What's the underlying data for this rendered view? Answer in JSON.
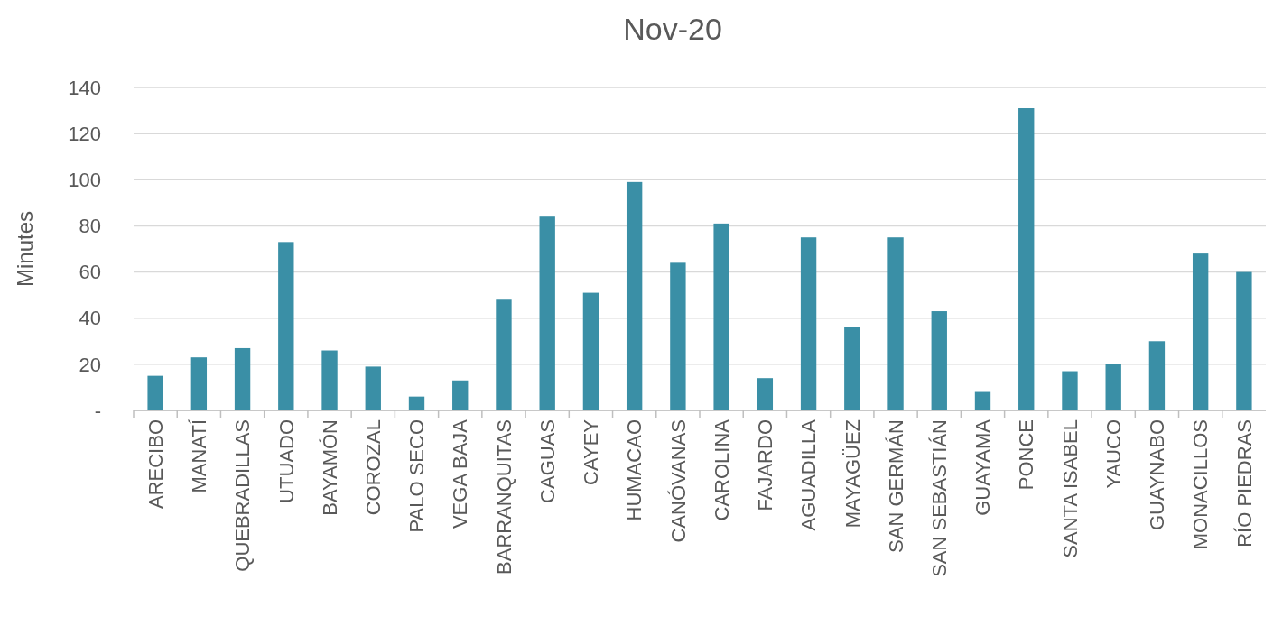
{
  "chart_data": {
    "type": "bar",
    "title": "Nov-20",
    "ylabel": "Minutes",
    "categories": [
      "ARECIBO",
      "MANATÍ",
      "QUEBRADILLAS",
      "UTUADO",
      "BAYAMÓN",
      "COROZAL",
      "PALO SECO",
      "VEGA BAJA",
      "BARRANQUITAS",
      "CAGUAS",
      "CAYEY",
      "HUMACAO",
      "CANÓVANAS",
      "CAROLINA",
      "FAJARDO",
      "AGUADILLA",
      "MAYAGÜEZ",
      "SAN GERMÁN",
      "SAN SEBASTIÁN",
      "GUAYAMA",
      "PONCE",
      "SANTA ISABEL",
      "YAUCO",
      "GUAYNABO",
      "MONACILLOS",
      "RÍO PIEDRAS"
    ],
    "values": [
      15,
      23,
      27,
      73,
      26,
      19,
      6,
      13,
      48,
      84,
      51,
      99,
      64,
      81,
      14,
      75,
      36,
      75,
      43,
      8,
      131,
      17,
      20,
      30,
      68,
      60
    ],
    "color": "#3a8fa6",
    "ylim": [
      0,
      140
    ],
    "yticks": [
      {
        "value": 0,
        "label": "-"
      },
      20,
      40,
      60,
      80,
      100,
      120,
      140
    ],
    "grid": "y"
  }
}
